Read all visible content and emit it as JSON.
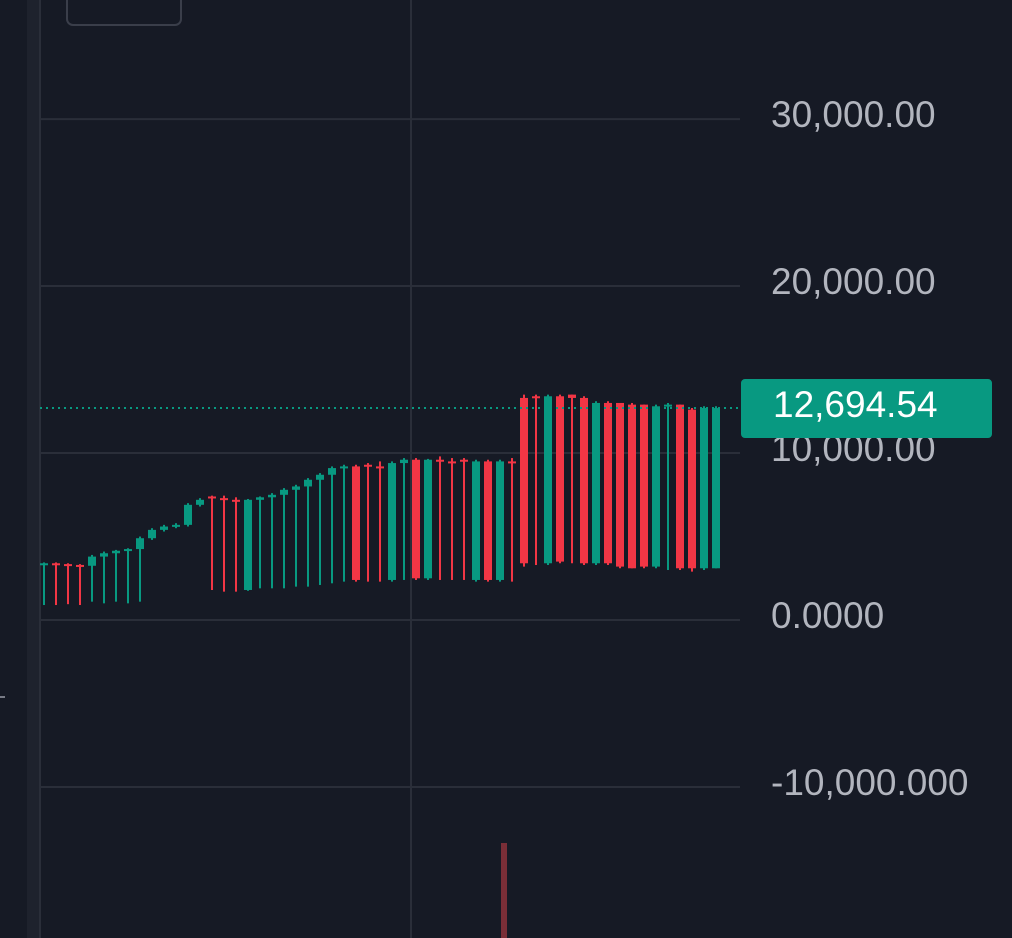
{
  "chart_data": {
    "type": "candlestick",
    "up_color": "#089981",
    "down_color": "#f23645",
    "grid": true,
    "ylim": [
      -19040,
      37130
    ],
    "yticks": [
      {
        "value": 30000,
        "label": "30,000.00"
      },
      {
        "value": 20000,
        "label": "20,000.00"
      },
      {
        "value": 10000,
        "label": "10,000.00"
      },
      {
        "value": 0,
        "label": "0.0000"
      },
      {
        "value": -10000,
        "label": "-10,000.000"
      }
    ],
    "last_price_label": "12,694.54",
    "open": [
      3300,
      3400,
      3350,
      3300,
      3250,
      3800,
      4000,
      4150,
      4250,
      4900,
      5400,
      5600,
      5700,
      6900,
      7400,
      7300,
      7200,
      1800,
      7200,
      7350,
      7500,
      7800,
      8000,
      8400,
      8700,
      9100,
      9200,
      9300,
      9200,
      2400,
      9400,
      9600,
      2500,
      9600,
      9500,
      9600,
      2400,
      9500,
      2400,
      9500,
      13300,
      13400,
      3400,
      13400,
      13500,
      13300,
      3400,
      13000,
      13000,
      12900,
      12900,
      3200,
      12800,
      12900,
      12600,
      3100,
      3100
    ],
    "high": [
      3450,
      3450,
      3400,
      3350,
      3900,
      4100,
      4200,
      4300,
      5000,
      5500,
      5700,
      5800,
      7000,
      7300,
      7450,
      7450,
      7350,
      7250,
      7400,
      7600,
      7900,
      8100,
      8500,
      8800,
      9200,
      9300,
      9300,
      9400,
      9500,
      9500,
      9700,
      9700,
      9650,
      9800,
      9700,
      9700,
      9600,
      9600,
      9600,
      9700,
      13500,
      13500,
      13500,
      13500,
      13500,
      13400,
      13100,
      13100,
      13000,
      13000,
      12900,
      12900,
      13000,
      12900,
      12700,
      12800,
      12800
    ],
    "low": [
      900,
      900,
      950,
      900,
      1100,
      1000,
      1100,
      1000,
      1100,
      4800,
      5300,
      5500,
      5600,
      6800,
      1800,
      1700,
      1700,
      1750,
      1900,
      1900,
      1900,
      2000,
      2000,
      2100,
      2200,
      2300,
      2300,
      2300,
      2300,
      2300,
      2400,
      2400,
      2400,
      2400,
      2400,
      2400,
      2300,
      2300,
      2300,
      2300,
      3200,
      3300,
      3300,
      3400,
      3400,
      3300,
      3300,
      3300,
      3100,
      3100,
      3100,
      3100,
      3000,
      3000,
      2900,
      3000,
      3100
    ],
    "close": [
      3400,
      3350,
      3300,
      3250,
      3800,
      4000,
      4150,
      4250,
      4900,
      5400,
      5600,
      5700,
      6900,
      7200,
      7300,
      7200,
      7100,
      7200,
      7350,
      7500,
      7800,
      8000,
      8400,
      8700,
      9100,
      9200,
      2400,
      9200,
      9100,
      9400,
      9600,
      2500,
      9600,
      9500,
      9400,
      9500,
      9500,
      2400,
      9500,
      9400,
      3400,
      13300,
      13400,
      3500,
      13300,
      3400,
      13000,
      3400,
      3200,
      3100,
      3200,
      12800,
      12900,
      3100,
      3100,
      12700,
      12694.54
    ]
  }
}
